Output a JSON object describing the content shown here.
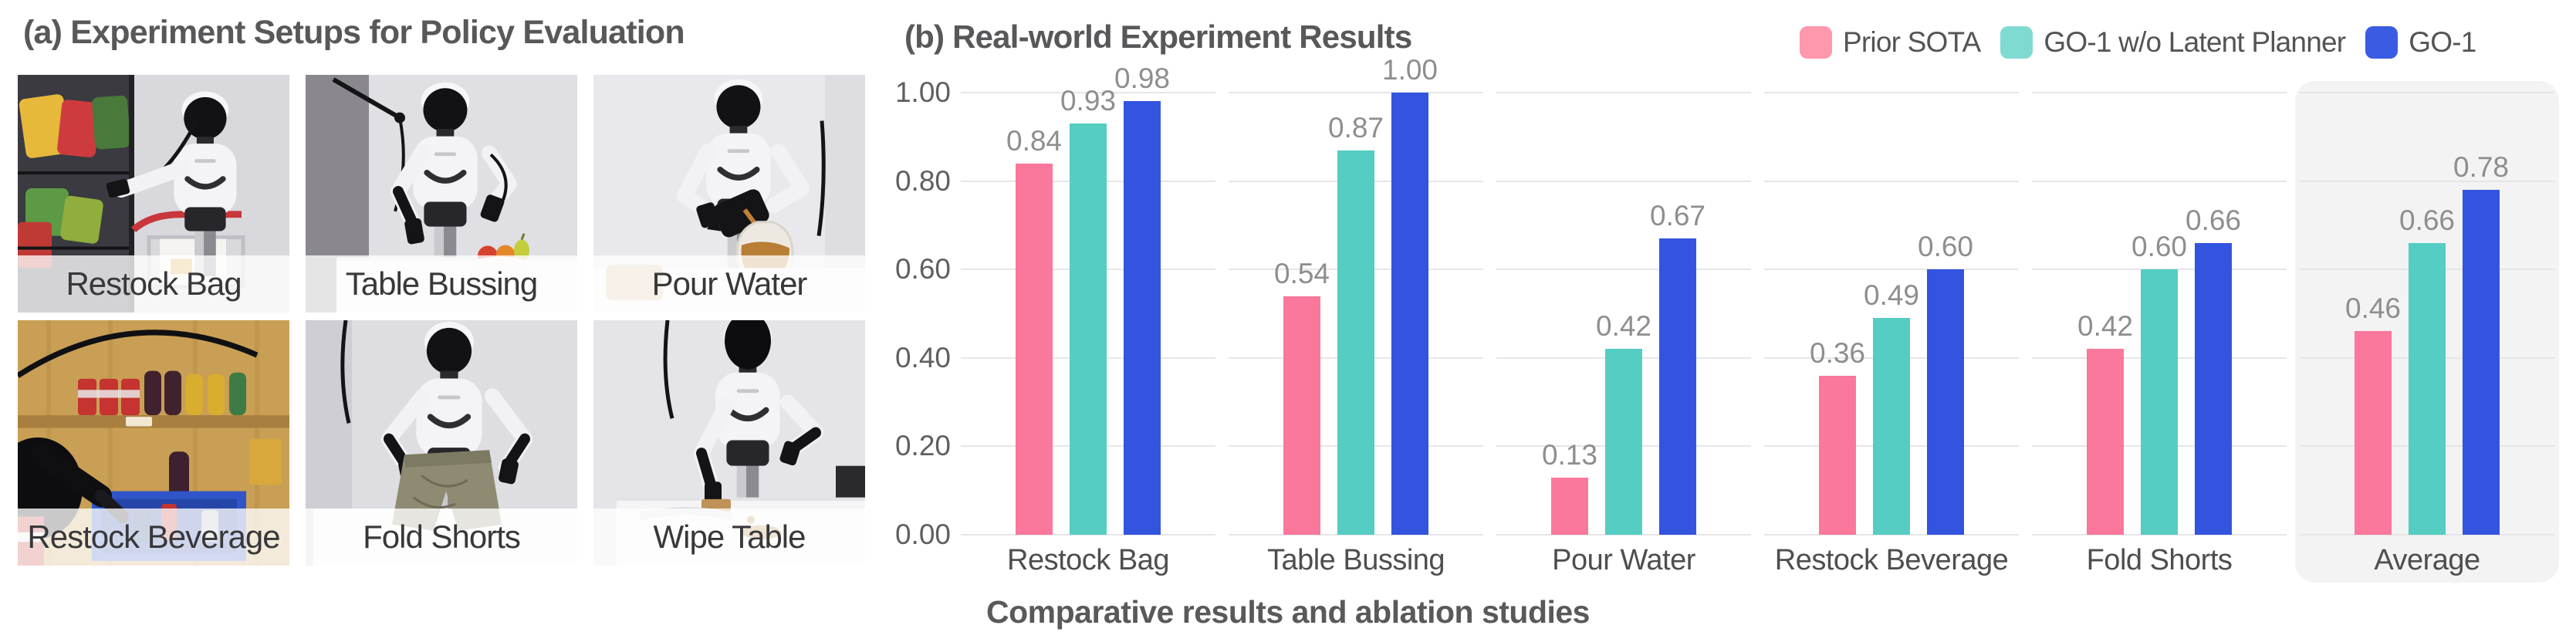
{
  "figure": {
    "setups": {
      "title": "(a) Experiment Setups for Policy Evaluation",
      "items": [
        {
          "label": "Restock Bag"
        },
        {
          "label": "Table Bussing"
        },
        {
          "label": "Pour Water"
        },
        {
          "label": "Restock Beverage"
        },
        {
          "label": "Fold Shorts"
        },
        {
          "label": "Wipe Table"
        }
      ]
    },
    "results": {
      "title": "(b) Real-world Experiment Results",
      "caption": "Comparative results and ablation studies"
    }
  },
  "chart_data": {
    "type": "bar",
    "title": "(b) Real-world Experiment Results",
    "categories": [
      "Restock Bag",
      "Table Bussing",
      "Pour Water",
      "Restock Beverage",
      "Fold Shorts",
      "Average"
    ],
    "series": [
      {
        "name": "Prior SOTA",
        "color": "#FA789B",
        "legend_color": "#FF97AD",
        "values": [
          0.84,
          0.54,
          0.13,
          0.36,
          0.42,
          0.46
        ]
      },
      {
        "name": "GO-1 w/o Latent Planner",
        "color": "#55CDC3",
        "legend_color": "#7FDBD2",
        "values": [
          0.93,
          0.87,
          0.42,
          0.49,
          0.6,
          0.66
        ]
      },
      {
        "name": "GO-1",
        "color": "#3254DF",
        "legend_color": "#3A5CE2",
        "values": [
          0.98,
          1.0,
          0.67,
          0.6,
          0.66,
          0.78
        ]
      }
    ],
    "ylim": [
      0,
      1
    ],
    "yticks": [
      0,
      0.2,
      0.4,
      0.6,
      0.8,
      1
    ],
    "ytick_labels": [
      "0.00",
      "0.20",
      "0.40",
      "0.60",
      "0.80",
      "1.00"
    ],
    "grid": "horizontal",
    "legend_position": "top-right",
    "highlight_category": "Average",
    "highlight_color": "#F3F3F4",
    "value_label_decimals": 2
  }
}
